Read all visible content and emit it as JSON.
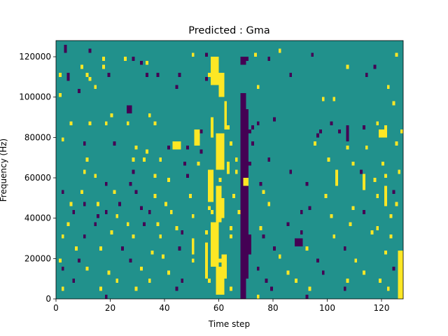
{
  "chart_data": {
    "type": "heatmap",
    "title": "Predicted : Gma",
    "xlabel": "Time step",
    "ylabel": "Frequency (Hz)",
    "xlim": [
      0,
      128
    ],
    "ylim": [
      0,
      128000
    ],
    "x_ticks": [
      0,
      20,
      40,
      60,
      80,
      100,
      120
    ],
    "y_ticks": [
      0,
      20000,
      40000,
      60000,
      80000,
      100000,
      120000
    ],
    "x_tick_labels": [
      "0",
      "20",
      "40",
      "60",
      "80",
      "100",
      "120"
    ],
    "y_tick_labels": [
      "0",
      "20000",
      "40000",
      "60000",
      "80000",
      "100000",
      "120000"
    ],
    "n_time_steps": 128,
    "n_frequency_bins": 64,
    "bin_width_hz": 2000,
    "value_levels": [
      -1,
      0,
      1
    ],
    "colors": {
      "-1": "#440154",
      "0": "#21918c",
      "1": "#fde725"
    },
    "background_value": 0,
    "nonzero_cells": [
      {
        "t": 3,
        "f": 62,
        "v": -1
      },
      {
        "t": 3,
        "f": 61,
        "v": -1
      },
      {
        "t": 12,
        "f": 61,
        "v": -1
      },
      {
        "t": 17,
        "f": 59,
        "v": 1
      },
      {
        "t": 25,
        "f": 59,
        "v": 1
      },
      {
        "t": 28,
        "f": 59,
        "v": -1
      },
      {
        "t": 50,
        "f": 60,
        "v": 1
      },
      {
        "t": 55,
        "f": 60,
        "v": -1
      },
      {
        "t": 69,
        "f": 59,
        "v": -1
      },
      {
        "t": 70,
        "f": 59,
        "v": -1
      },
      {
        "t": 73,
        "f": 60,
        "v": 1
      },
      {
        "t": 78,
        "f": 59,
        "v": -1
      },
      {
        "t": 82,
        "f": 61,
        "v": 1
      },
      {
        "t": 94,
        "f": 60,
        "v": -1
      },
      {
        "t": 125,
        "f": 60,
        "v": 1
      },
      {
        "t": 9,
        "f": 57,
        "v": 1
      },
      {
        "t": 17,
        "f": 57,
        "v": 1
      },
      {
        "t": 31,
        "f": 58,
        "v": -1
      },
      {
        "t": 33,
        "f": 58,
        "v": 1
      },
      {
        "t": 107,
        "f": 57,
        "v": 1
      },
      {
        "t": 117,
        "f": 57,
        "v": -1
      },
      {
        "t": 1,
        "f": 55,
        "v": 1
      },
      {
        "t": 4,
        "f": 55,
        "v": -1
      },
      {
        "t": 11,
        "f": 55,
        "v": 1
      },
      {
        "t": 19,
        "f": 55,
        "v": -1
      },
      {
        "t": 33,
        "f": 55,
        "v": -1
      },
      {
        "t": 37,
        "f": 55,
        "v": -1
      },
      {
        "t": 45,
        "f": 55,
        "v": -1
      },
      {
        "t": 56,
        "f": 55,
        "v": 1
      },
      {
        "t": 86,
        "f": 55,
        "v": -1
      },
      {
        "t": 114,
        "f": 55,
        "v": -1
      },
      {
        "t": 4,
        "f": 54,
        "v": -1
      },
      {
        "t": 12,
        "f": 54,
        "v": 1
      },
      {
        "t": 55,
        "f": 54,
        "v": -1
      },
      {
        "t": 14,
        "f": 52,
        "v": 1
      },
      {
        "t": 44,
        "f": 52,
        "v": -1
      },
      {
        "t": 74,
        "f": 52,
        "v": 1
      },
      {
        "t": 122,
        "f": 52,
        "v": 1
      },
      {
        "t": 1,
        "f": 50,
        "v": 1
      },
      {
        "t": 8,
        "f": 51,
        "v": -1
      },
      {
        "t": 98,
        "f": 49,
        "v": 1
      },
      {
        "t": 102,
        "f": 49,
        "v": 1
      },
      {
        "t": 124,
        "f": 48,
        "v": 1
      },
      {
        "t": 118,
        "f": 43,
        "v": 1
      },
      {
        "t": 80,
        "f": 44,
        "v": -1
      },
      {
        "t": 20,
        "f": 45,
        "v": 1
      },
      {
        "t": 34,
        "f": 45,
        "v": 1
      },
      {
        "t": 118,
        "f": 43,
        "v": 1
      },
      {
        "t": 5,
        "f": 43,
        "v": 1
      },
      {
        "t": 12,
        "f": 43,
        "v": 1
      },
      {
        "t": 18,
        "f": 43,
        "v": 1
      },
      {
        "t": 26,
        "f": 43,
        "v": 1
      },
      {
        "t": 36,
        "f": 43,
        "v": 1
      },
      {
        "t": 53,
        "f": 41,
        "v": -1
      },
      {
        "t": 63,
        "f": 42,
        "v": 1
      },
      {
        "t": 71,
        "f": 41,
        "v": -1
      },
      {
        "t": 72,
        "f": 42,
        "v": -1
      },
      {
        "t": 74,
        "f": 43,
        "v": -1
      },
      {
        "t": 96,
        "f": 40,
        "v": -1
      },
      {
        "t": 97,
        "f": 41,
        "v": -1
      },
      {
        "t": 101,
        "f": 43,
        "v": -1
      },
      {
        "t": 104,
        "f": 41,
        "v": -1
      },
      {
        "t": 113,
        "f": 42,
        "v": -1
      },
      {
        "t": 121,
        "f": 42,
        "v": 1
      },
      {
        "t": 127,
        "f": 41,
        "v": 1
      },
      {
        "t": 2,
        "f": 39,
        "v": 1
      },
      {
        "t": 10,
        "f": 38,
        "v": -1
      },
      {
        "t": 21,
        "f": 38,
        "v": -1
      },
      {
        "t": 29,
        "f": 37,
        "v": 1
      },
      {
        "t": 33,
        "f": 36,
        "v": 1
      },
      {
        "t": 41,
        "f": 37,
        "v": -1
      },
      {
        "t": 48,
        "f": 37,
        "v": -1
      },
      {
        "t": 53,
        "f": 36,
        "v": -1
      },
      {
        "t": 64,
        "f": 38,
        "v": 1
      },
      {
        "t": 72,
        "f": 38,
        "v": -1
      },
      {
        "t": 95,
        "f": 38,
        "v": 1
      },
      {
        "t": 107,
        "f": 37,
        "v": 1
      },
      {
        "t": 114,
        "f": 37,
        "v": 1
      },
      {
        "t": 125,
        "f": 38,
        "v": 1
      },
      {
        "t": 11,
        "f": 34,
        "v": 1
      },
      {
        "t": 28,
        "f": 34,
        "v": 1
      },
      {
        "t": 32,
        "f": 34,
        "v": 1
      },
      {
        "t": 38,
        "f": 34,
        "v": 1
      },
      {
        "t": 47,
        "f": 33,
        "v": -1
      },
      {
        "t": 52,
        "f": 33,
        "v": 1
      },
      {
        "t": 66,
        "f": 34,
        "v": 1
      },
      {
        "t": 71,
        "f": 33,
        "v": -1
      },
      {
        "t": 78,
        "f": 34,
        "v": -1
      },
      {
        "t": 100,
        "f": 34,
        "v": 1
      },
      {
        "t": 109,
        "f": 33,
        "v": 1
      },
      {
        "t": 120,
        "f": 33,
        "v": 1
      },
      {
        "t": 10,
        "f": 31,
        "v": 1
      },
      {
        "t": 14,
        "f": 30,
        "v": 1
      },
      {
        "t": 28,
        "f": 31,
        "v": -1
      },
      {
        "t": 36,
        "f": 30,
        "v": 1
      },
      {
        "t": 48,
        "f": 30,
        "v": -1
      },
      {
        "t": 57,
        "f": 31,
        "v": 1
      },
      {
        "t": 66,
        "f": 31,
        "v": 1
      },
      {
        "t": 86,
        "f": 31,
        "v": -1
      },
      {
        "t": 103,
        "f": 30,
        "v": 1
      },
      {
        "t": 112,
        "f": 31,
        "v": -1
      },
      {
        "t": 121,
        "f": 30,
        "v": 1
      },
      {
        "t": 126,
        "f": 31,
        "v": 1
      },
      {
        "t": 18,
        "f": 28,
        "v": -1
      },
      {
        "t": 27,
        "f": 28,
        "v": -1
      },
      {
        "t": 41,
        "f": 29,
        "v": 1
      },
      {
        "t": 60,
        "f": 29,
        "v": 1
      },
      {
        "t": 75,
        "f": 28,
        "v": -1
      },
      {
        "t": 92,
        "f": 28,
        "v": -1
      },
      {
        "t": 117,
        "f": 29,
        "v": 1
      },
      {
        "t": 2,
        "f": 26,
        "v": -1
      },
      {
        "t": 9,
        "f": 26,
        "v": 1
      },
      {
        "t": 21,
        "f": 26,
        "v": 1
      },
      {
        "t": 29,
        "f": 26,
        "v": -1
      },
      {
        "t": 36,
        "f": 25,
        "v": 1
      },
      {
        "t": 49,
        "f": 25,
        "v": 1
      },
      {
        "t": 65,
        "f": 25,
        "v": 1
      },
      {
        "t": 76,
        "f": 26,
        "v": 1
      },
      {
        "t": 99,
        "f": 25,
        "v": 1
      },
      {
        "t": 118,
        "f": 25,
        "v": 1
      },
      {
        "t": 124,
        "f": 26,
        "v": -1
      },
      {
        "t": 5,
        "f": 23,
        "v": 1
      },
      {
        "t": 10,
        "f": 23,
        "v": -1
      },
      {
        "t": 15,
        "f": 23,
        "v": 1
      },
      {
        "t": 23,
        "f": 23,
        "v": -1
      },
      {
        "t": 31,
        "f": 22,
        "v": -1
      },
      {
        "t": 40,
        "f": 23,
        "v": 1
      },
      {
        "t": 56,
        "f": 22,
        "v": 1
      },
      {
        "t": 78,
        "f": 23,
        "v": 1
      },
      {
        "t": 93,
        "f": 22,
        "v": -1
      },
      {
        "t": 109,
        "f": 22,
        "v": 1
      },
      {
        "t": 125,
        "f": 23,
        "v": 1
      },
      {
        "t": 6,
        "f": 21,
        "v": -1
      },
      {
        "t": 15,
        "f": 20,
        "v": -1
      },
      {
        "t": 18,
        "f": 21,
        "v": -1
      },
      {
        "t": 22,
        "f": 20,
        "v": 1
      },
      {
        "t": 34,
        "f": 21,
        "v": -1
      },
      {
        "t": 42,
        "f": 21,
        "v": 1
      },
      {
        "t": 50,
        "f": 20,
        "v": 1
      },
      {
        "t": 57,
        "f": 21,
        "v": 1
      },
      {
        "t": 67,
        "f": 21,
        "v": 1
      },
      {
        "t": 90,
        "f": 21,
        "v": -1
      },
      {
        "t": 101,
        "f": 20,
        "v": 1
      },
      {
        "t": 113,
        "f": 21,
        "v": -1
      },
      {
        "t": 123,
        "f": 20,
        "v": 1
      },
      {
        "t": 4,
        "f": 18,
        "v": 1
      },
      {
        "t": 14,
        "f": 18,
        "v": -1
      },
      {
        "t": 26,
        "f": 18,
        "v": 1
      },
      {
        "t": 32,
        "f": 18,
        "v": -1
      },
      {
        "t": 37,
        "f": 18,
        "v": 1
      },
      {
        "t": 44,
        "f": 17,
        "v": 1
      },
      {
        "t": 58,
        "f": 18,
        "v": 1
      },
      {
        "t": 64,
        "f": 17,
        "v": 1
      },
      {
        "t": 75,
        "f": 17,
        "v": 1
      },
      {
        "t": 85,
        "f": 18,
        "v": -1
      },
      {
        "t": 108,
        "f": 18,
        "v": 1
      },
      {
        "t": 118,
        "f": 17,
        "v": 1
      },
      {
        "t": 2,
        "f": 15,
        "v": 1
      },
      {
        "t": 10,
        "f": 15,
        "v": -1
      },
      {
        "t": 20,
        "f": 16,
        "v": 1
      },
      {
        "t": 28,
        "f": 15,
        "v": 1
      },
      {
        "t": 38,
        "f": 15,
        "v": 1
      },
      {
        "t": 46,
        "f": 16,
        "v": -1
      },
      {
        "t": 55,
        "f": 16,
        "v": 1
      },
      {
        "t": 64,
        "f": 15,
        "v": 1
      },
      {
        "t": 76,
        "f": 15,
        "v": -1
      },
      {
        "t": 90,
        "f": 16,
        "v": -1
      },
      {
        "t": 102,
        "f": 15,
        "v": 1
      },
      {
        "t": 116,
        "f": 16,
        "v": 1
      },
      {
        "t": 123,
        "f": 15,
        "v": 1
      },
      {
        "t": 7,
        "f": 12,
        "v": 1
      },
      {
        "t": 16,
        "f": 12,
        "v": 1
      },
      {
        "t": 24,
        "f": 12,
        "v": -1
      },
      {
        "t": 35,
        "f": 11,
        "v": 1
      },
      {
        "t": 45,
        "f": 12,
        "v": -1
      },
      {
        "t": 55,
        "f": 11,
        "v": 1
      },
      {
        "t": 80,
        "f": 12,
        "v": -1
      },
      {
        "t": 92,
        "f": 12,
        "v": 1
      },
      {
        "t": 106,
        "f": 12,
        "v": -1
      },
      {
        "t": 121,
        "f": 11,
        "v": 1
      },
      {
        "t": 1,
        "f": 9,
        "v": 1
      },
      {
        "t": 8,
        "f": 9,
        "v": -1
      },
      {
        "t": 27,
        "f": 9,
        "v": -1
      },
      {
        "t": 39,
        "f": 10,
        "v": 1
      },
      {
        "t": 50,
        "f": 9,
        "v": 1
      },
      {
        "t": 60,
        "f": 9,
        "v": 1
      },
      {
        "t": 82,
        "f": 10,
        "v": 1
      },
      {
        "t": 96,
        "f": 9,
        "v": -1
      },
      {
        "t": 110,
        "f": 9,
        "v": 1
      },
      {
        "t": 2,
        "f": 7,
        "v": -1
      },
      {
        "t": 11,
        "f": 7,
        "v": 1
      },
      {
        "t": 19,
        "f": 6,
        "v": 1
      },
      {
        "t": 31,
        "f": 7,
        "v": 1
      },
      {
        "t": 41,
        "f": 6,
        "v": 1
      },
      {
        "t": 59,
        "f": 7,
        "v": 1
      },
      {
        "t": 74,
        "f": 7,
        "v": -1
      },
      {
        "t": 85,
        "f": 6,
        "v": 1
      },
      {
        "t": 98,
        "f": 6,
        "v": -1
      },
      {
        "t": 113,
        "f": 6,
        "v": 1
      },
      {
        "t": 124,
        "f": 7,
        "v": -1
      },
      {
        "t": 6,
        "f": 4,
        "v": -1
      },
      {
        "t": 22,
        "f": 4,
        "v": 1
      },
      {
        "t": 34,
        "f": 4,
        "v": 1
      },
      {
        "t": 46,
        "f": 4,
        "v": -1
      },
      {
        "t": 56,
        "f": 4,
        "v": 1
      },
      {
        "t": 77,
        "f": 4,
        "v": -1
      },
      {
        "t": 88,
        "f": 4,
        "v": 1
      },
      {
        "t": 107,
        "f": 4,
        "v": 1
      },
      {
        "t": 119,
        "f": 4,
        "v": 1
      },
      {
        "t": 2,
        "f": 2,
        "v": 1
      },
      {
        "t": 16,
        "f": 2,
        "v": 1
      },
      {
        "t": 29,
        "f": 2,
        "v": 1
      },
      {
        "t": 44,
        "f": 2,
        "v": -1
      },
      {
        "t": 64,
        "f": 2,
        "v": 1
      },
      {
        "t": 79,
        "f": 2,
        "v": -1
      },
      {
        "t": 93,
        "f": 2,
        "v": 1
      },
      {
        "t": 106,
        "f": 2,
        "v": -1
      },
      {
        "t": 122,
        "f": 2,
        "v": 1
      },
      {
        "t": 18,
        "f": 0,
        "v": -1
      },
      {
        "t": 74,
        "f": 0,
        "v": 1
      },
      {
        "t": 92,
        "f": 0,
        "v": -1
      }
    ],
    "nonzero_runs": [
      {
        "t_from": 68,
        "t_to": 69,
        "f_from": 0,
        "f_to": 50,
        "v": -1
      },
      {
        "t_from": 70,
        "t_to": 70,
        "f_from": 5,
        "f_to": 46,
        "v": -1
      },
      {
        "t_from": 68,
        "t_to": 69,
        "f_from": 38,
        "f_to": 40,
        "v": -1
      },
      {
        "t_from": 71,
        "t_to": 71,
        "f_from": 11,
        "f_to": 15,
        "v": -1
      },
      {
        "t_from": 68,
        "t_to": 69,
        "f_from": 58,
        "f_to": 59,
        "v": -1
      },
      {
        "t_from": 59,
        "t_to": 61,
        "f_from": 1,
        "f_to": 7,
        "v": 1
      },
      {
        "t_from": 57,
        "t_to": 59,
        "f_from": 8,
        "f_to": 18,
        "v": 1
      },
      {
        "t_from": 61,
        "t_to": 62,
        "f_from": 5,
        "f_to": 10,
        "v": 1
      },
      {
        "t_from": 56,
        "t_to": 57,
        "f_from": 24,
        "f_to": 31,
        "v": 1
      },
      {
        "t_from": 59,
        "t_to": 60,
        "f_from": 19,
        "f_to": 27,
        "v": 1
      },
      {
        "t_from": 57,
        "t_to": 59,
        "f_from": 53,
        "f_to": 59,
        "v": 1
      },
      {
        "t_from": 62,
        "t_to": 62,
        "f_from": 42,
        "f_to": 48,
        "v": 1
      },
      {
        "t_from": 59,
        "t_to": 61,
        "f_from": 32,
        "f_to": 40,
        "v": 1
      },
      {
        "t_from": 57,
        "t_to": 57,
        "f_from": 40,
        "f_to": 44,
        "v": 1
      },
      {
        "t_from": 60,
        "t_to": 61,
        "f_from": 50,
        "f_to": 55,
        "v": 1
      },
      {
        "t_from": 55,
        "t_to": 55,
        "f_from": 5,
        "f_to": 13,
        "v": 1
      },
      {
        "t_from": 51,
        "t_to": 52,
        "f_from": 38,
        "f_to": 41,
        "v": 1
      },
      {
        "t_from": 61,
        "t_to": 61,
        "f_from": 20,
        "f_to": 24,
        "v": 1
      },
      {
        "t_from": 50,
        "t_to": 50,
        "f_from": 11,
        "f_to": 14,
        "v": 1
      },
      {
        "t_from": 63,
        "t_to": 63,
        "f_from": 31,
        "f_to": 33,
        "v": 1
      },
      {
        "t_from": 119,
        "t_to": 121,
        "f_from": 40,
        "f_to": 41,
        "v": 1
      },
      {
        "t_from": 121,
        "t_to": 121,
        "f_from": 23,
        "f_to": 27,
        "v": 1
      },
      {
        "t_from": 126,
        "t_to": 127,
        "f_from": 0,
        "f_to": 11,
        "v": 1
      },
      {
        "t_from": 113,
        "t_to": 113,
        "f_from": 27,
        "f_to": 30,
        "v": 1
      },
      {
        "t_from": 107,
        "t_to": 107,
        "f_from": 39,
        "f_to": 42,
        "v": -1
      },
      {
        "t_from": 103,
        "t_to": 103,
        "f_from": 28,
        "f_to": 31,
        "v": 1
      },
      {
        "t_from": 88,
        "t_to": 90,
        "f_from": 13,
        "f_to": 14,
        "v": -1
      },
      {
        "t_from": 43,
        "t_to": 45,
        "f_from": 37,
        "f_to": 38,
        "v": 1
      },
      {
        "t_from": 26,
        "t_to": 27,
        "f_from": 46,
        "f_to": 47,
        "v": -1
      },
      {
        "t_from": 69,
        "t_to": 70,
        "f_from": 28,
        "f_to": 29,
        "v": 1
      }
    ]
  }
}
